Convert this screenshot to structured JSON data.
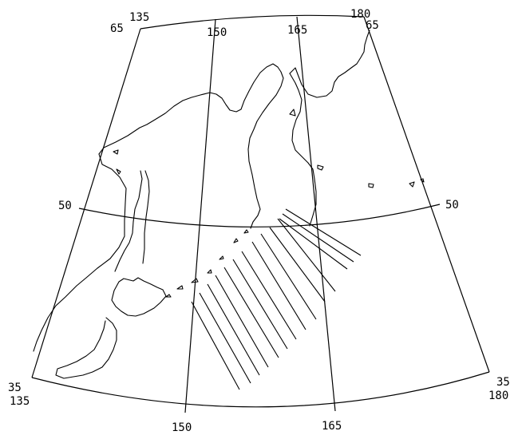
{
  "labels": {
    "top_135": "135",
    "top_150": "150",
    "top_165": "165",
    "top_180": "180",
    "left_65": "65",
    "right_65": "65",
    "left_50": "50",
    "right_50": "50",
    "left_35": "35",
    "right_35": "35",
    "bottom_135": "135",
    "bottom_150": "150",
    "bottom_165": "165",
    "bottom_180": "180"
  }
}
